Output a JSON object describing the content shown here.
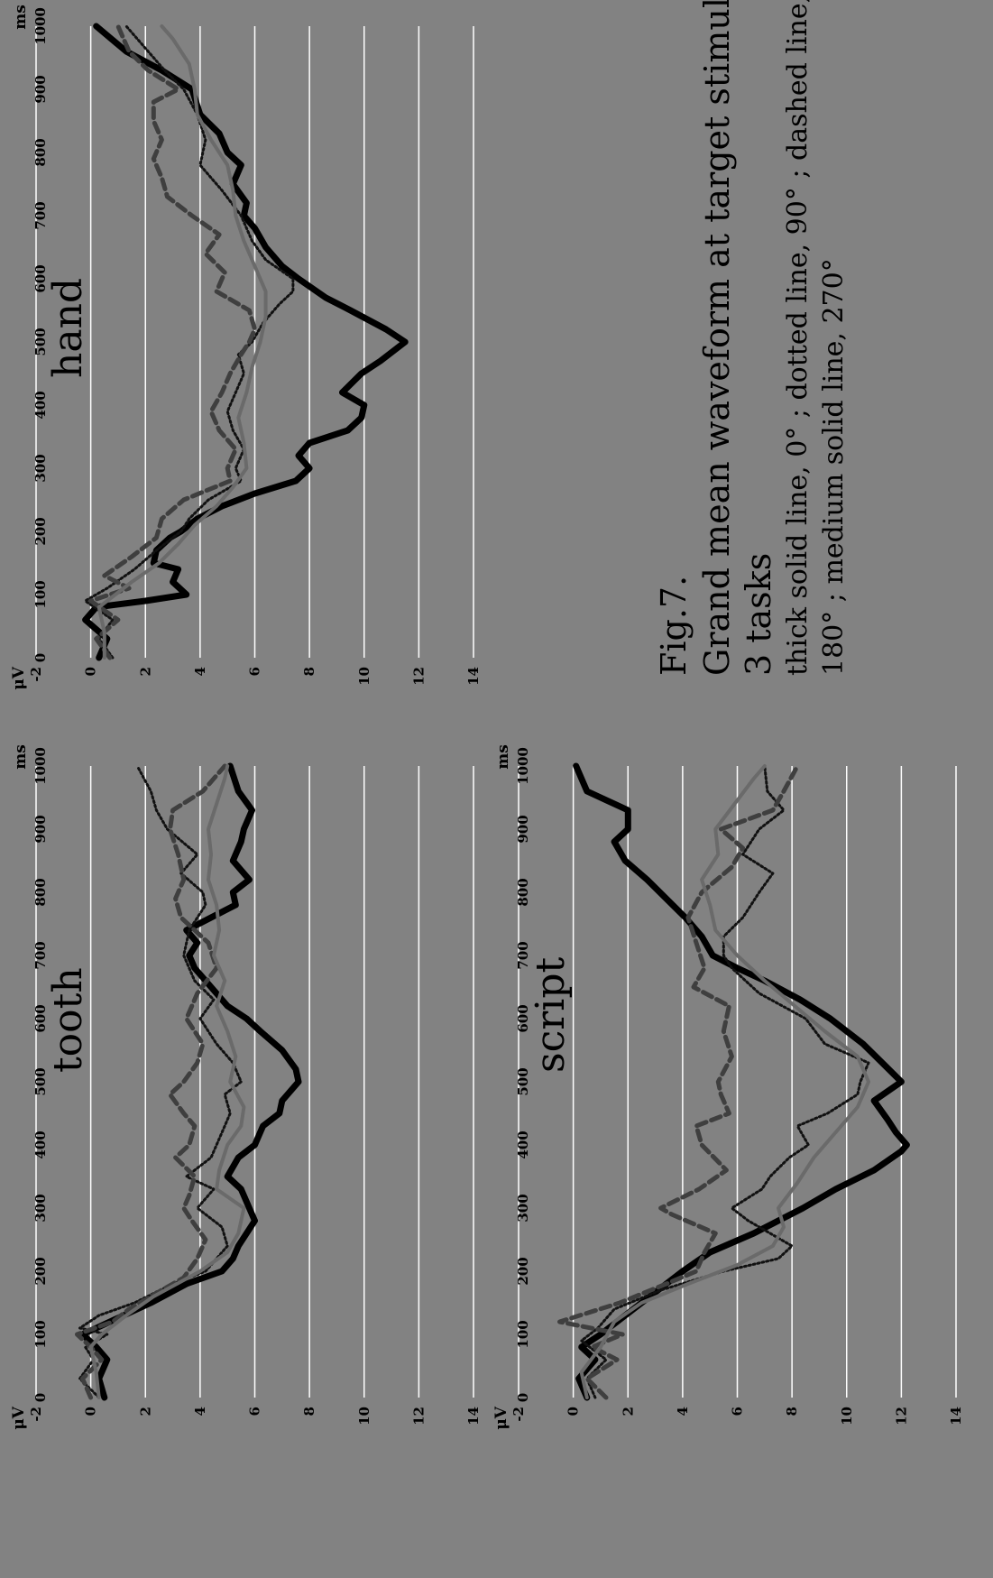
{
  "caption": {
    "fig_label": "Fig.7.",
    "title_line1": "Grand mean waveform at target stimuli in",
    "title_line2": "3 tasks",
    "note_line1": "thick solid line, 0°  ; dotted line, 90°  ; dashed line,",
    "note_line2": "180°  ; medium solid line, 270°"
  },
  "colors": {
    "background": "#828282",
    "gridline": "#ffffff",
    "thick_solid": "#000000",
    "dotted": "#111111",
    "dashed": "#3f3f3f",
    "medium_solid": "#6a6a6a"
  },
  "chart_data": [
    {
      "type": "line",
      "title": "tooth",
      "xlabel": "ms",
      "ylabel": "μV",
      "xlim": [
        0,
        1000
      ],
      "ylim": [
        -2,
        14
      ],
      "y_axis_inverted": true,
      "x_ticks": [
        "0",
        "100",
        "200",
        "300",
        "400",
        "500",
        "600",
        "700",
        "800",
        "900",
        "1000"
      ],
      "y_ticks": [
        "-2",
        "0",
        "2",
        "4",
        "6",
        "8",
        "10",
        "12",
        "14"
      ],
      "grid": true,
      "series": [
        {
          "style": "thick-solid",
          "x": [
            0,
            30,
            60,
            80,
            100,
            110,
            130,
            150,
            180,
            200,
            220,
            240,
            260,
            280,
            300,
            330,
            350,
            380,
            400,
            430,
            450,
            470,
            500,
            520,
            550,
            580,
            600,
            620,
            650,
            680,
            700,
            720,
            740,
            760,
            780,
            800,
            820,
            850,
            880,
            900,
            930,
            960,
            1000
          ],
          "y": [
            0.5,
            0.3,
            0.6,
            0.2,
            -0.3,
            0.2,
            1.2,
            2.2,
            3.5,
            4.8,
            5.2,
            5.4,
            5.7,
            6.0,
            5.8,
            5.5,
            5.0,
            5.4,
            6.0,
            6.3,
            6.9,
            7.0,
            7.6,
            7.5,
            7.0,
            6.2,
            5.7,
            5.0,
            4.4,
            3.8,
            3.6,
            3.9,
            3.5,
            4.4,
            5.3,
            5.2,
            5.8,
            5.2,
            5.5,
            5.6,
            5.9,
            5.4,
            5.1
          ]
        },
        {
          "style": "dotted",
          "x": [
            0,
            30,
            60,
            80,
            100,
            110,
            130,
            150,
            180,
            200,
            220,
            240,
            270,
            300,
            330,
            350,
            380,
            400,
            430,
            450,
            480,
            500,
            530,
            560,
            600,
            630,
            660,
            700,
            740,
            780,
            800,
            830,
            860,
            900,
            930,
            960,
            1000
          ],
          "y": [
            0.3,
            -0.4,
            0.1,
            -0.2,
            0.6,
            -0.4,
            0.3,
            1.6,
            3.0,
            4.2,
            4.6,
            5.0,
            4.8,
            3.9,
            4.5,
            3.5,
            4.4,
            4.6,
            4.9,
            5.1,
            4.9,
            5.5,
            5.2,
            4.6,
            4.0,
            4.5,
            3.8,
            3.4,
            3.6,
            4.2,
            4.1,
            3.3,
            3.9,
            2.8,
            2.4,
            2.2,
            1.7
          ]
        },
        {
          "style": "dashed",
          "x": [
            0,
            30,
            60,
            80,
            100,
            120,
            140,
            160,
            190,
            220,
            250,
            280,
            300,
            320,
            350,
            380,
            400,
            430,
            450,
            480,
            500,
            530,
            560,
            600,
            640,
            680,
            720,
            760,
            790,
            820,
            860,
            900,
            930,
            960,
            1000
          ],
          "y": [
            0,
            -0.3,
            0.4,
            0,
            -0.5,
            0.8,
            1.4,
            2.2,
            3.4,
            3.9,
            4.2,
            3.7,
            3.4,
            3.6,
            3.8,
            3.1,
            3.6,
            3.8,
            3.4,
            2.9,
            3.4,
            3.9,
            4.1,
            3.5,
            3.9,
            4.6,
            4.3,
            3.3,
            3.1,
            3.4,
            3.2,
            2.9,
            3.0,
            4.1,
            4.9
          ]
        },
        {
          "style": "medium-solid",
          "x": [
            0,
            40,
            80,
            100,
            130,
            160,
            200,
            230,
            260,
            300,
            330,
            360,
            400,
            430,
            460,
            500,
            540,
            580,
            620,
            660,
            700,
            740,
            780,
            820,
            860,
            900,
            940,
            980,
            1000
          ],
          "y": [
            0.3,
            0.2,
            0,
            0.4,
            1.3,
            2.3,
            4.0,
            5.0,
            5.4,
            5.6,
            4.6,
            4.7,
            5.0,
            5.5,
            5.6,
            5.1,
            5.3,
            5.0,
            4.6,
            4.9,
            4.5,
            4.7,
            4.6,
            4.3,
            4.4,
            4.3,
            4.6,
            4.9,
            5.0
          ]
        }
      ]
    },
    {
      "type": "line",
      "title": "script",
      "xlabel": "ms",
      "ylabel": "μV",
      "xlim": [
        0,
        1000
      ],
      "ylim": [
        -2,
        14
      ],
      "y_axis_inverted": true,
      "x_ticks": [
        "0",
        "100",
        "200",
        "300",
        "400",
        "500",
        "600",
        "700",
        "800",
        "900",
        "1000"
      ],
      "y_ticks": [
        "-2",
        "0",
        "2",
        "4",
        "6",
        "8",
        "10",
        "12",
        "14"
      ],
      "grid": true,
      "series": [
        {
          "style": "thick-solid",
          "x": [
            0,
            30,
            60,
            80,
            100,
            120,
            150,
            180,
            200,
            230,
            260,
            300,
            330,
            360,
            390,
            400,
            420,
            440,
            470,
            500,
            530,
            560,
            600,
            630,
            660,
            680,
            700,
            730,
            760,
            790,
            820,
            850,
            880,
            900,
            930,
            960,
            1000
          ],
          "y": [
            0.5,
            0.2,
            0.8,
            0.3,
            1.0,
            1.6,
            2.5,
            3.4,
            4.0,
            5.0,
            6.6,
            8.4,
            9.6,
            11.0,
            12.0,
            12.2,
            11.8,
            11.5,
            11.0,
            12.0,
            11.3,
            10.6,
            9.4,
            8.3,
            7.0,
            6.0,
            5.1,
            4.7,
            4.1,
            3.4,
            2.7,
            1.9,
            1.5,
            2.0,
            2.0,
            0.5,
            0.1
          ]
        },
        {
          "style": "dotted",
          "x": [
            0,
            30,
            60,
            90,
            110,
            140,
            170,
            200,
            220,
            240,
            260,
            280,
            300,
            330,
            350,
            380,
            400,
            430,
            450,
            480,
            500,
            530,
            560,
            600,
            640,
            680,
            700,
            730,
            760,
            800,
            830,
            860,
            900,
            930,
            960,
            1000
          ],
          "y": [
            0.8,
            0.5,
            1.2,
            0.3,
            0.9,
            1.5,
            3.2,
            5.5,
            7.5,
            8.0,
            7.2,
            6.4,
            5.8,
            6.9,
            7.2,
            7.9,
            8.6,
            8.2,
            9.3,
            10.4,
            10.5,
            10.8,
            9.2,
            8.5,
            6.8,
            5.8,
            5.5,
            5.5,
            6.2,
            6.8,
            7.3,
            6.2,
            6.8,
            7.7,
            7.1,
            7.0
          ]
        },
        {
          "style": "dashed",
          "x": [
            0,
            30,
            60,
            80,
            100,
            120,
            150,
            180,
            200,
            230,
            260,
            290,
            300,
            330,
            360,
            400,
            430,
            450,
            480,
            500,
            540,
            580,
            620,
            650,
            680,
            720,
            760,
            800,
            840,
            870,
            900,
            930,
            960,
            1000
          ],
          "y": [
            1.2,
            0.5,
            1.6,
            0.7,
            1.8,
            -0.5,
            1.7,
            3.4,
            4.5,
            4.8,
            5.2,
            3.6,
            3.2,
            4.6,
            5.6,
            4.7,
            4.5,
            5.7,
            5.4,
            5.3,
            5.8,
            5.5,
            5.7,
            4.4,
            4.8,
            4.5,
            4.2,
            4.7,
            5.8,
            6.2,
            5.4,
            7.3,
            7.7,
            8.2
          ]
        },
        {
          "style": "medium-solid",
          "x": [
            0,
            40,
            80,
            120,
            150,
            180,
            210,
            240,
            270,
            300,
            340,
            380,
            420,
            460,
            500,
            540,
            580,
            620,
            660,
            700,
            740,
            780,
            820,
            860,
            900,
            940,
            980,
            1000
          ],
          "y": [
            0.5,
            0.3,
            1.0,
            1.5,
            2.5,
            4.2,
            6.0,
            7.3,
            7.7,
            7.5,
            8.2,
            8.8,
            9.6,
            10.4,
            10.8,
            10.4,
            9.2,
            8.1,
            7.0,
            6.0,
            5.2,
            5.0,
            4.7,
            5.3,
            5.2,
            5.9,
            6.6,
            7.0
          ]
        }
      ]
    },
    {
      "type": "line",
      "title": "hand",
      "xlabel": "ms",
      "ylabel": "μV",
      "xlim": [
        0,
        1000
      ],
      "ylim": [
        -2,
        14
      ],
      "y_axis_inverted": true,
      "x_ticks": [
        "0",
        "100",
        "200",
        "300",
        "400",
        "500",
        "600",
        "700",
        "800",
        "900",
        "1000"
      ],
      "y_ticks": [
        "-2",
        "0",
        "2",
        "4",
        "6",
        "8",
        "10",
        "12",
        "14"
      ],
      "grid": true,
      "series": [
        {
          "style": "thick-solid",
          "x": [
            0,
            30,
            60,
            80,
            90,
            100,
            120,
            140,
            150,
            170,
            190,
            200,
            220,
            240,
            260,
            280,
            300,
            320,
            340,
            360,
            380,
            400,
            420,
            450,
            470,
            500,
            520,
            550,
            570,
            600,
            620,
            650,
            680,
            700,
            720,
            750,
            780,
            800,
            830,
            860,
            900,
            930,
            960,
            1000
          ],
          "y": [
            0.3,
            0.6,
            -0.2,
            0.2,
            2.0,
            3.5,
            3.0,
            3.2,
            2.3,
            2.4,
            2.9,
            3.3,
            3.9,
            4.8,
            6.0,
            7.5,
            8.0,
            7.6,
            8.0,
            9.4,
            9.9,
            10.0,
            9.2,
            9.9,
            10.6,
            11.5,
            10.8,
            9.5,
            8.6,
            7.6,
            7.0,
            6.4,
            6.0,
            5.6,
            5.7,
            5.2,
            5.5,
            5.0,
            4.7,
            4.0,
            3.7,
            2.6,
            1.3,
            0.2
          ]
        },
        {
          "style": "dotted",
          "x": [
            0,
            30,
            60,
            90,
            110,
            140,
            170,
            200,
            220,
            250,
            280,
            300,
            330,
            360,
            390,
            420,
            450,
            480,
            500,
            530,
            560,
            580,
            600,
            630,
            660,
            700,
            740,
            780,
            820,
            860,
            900,
            930,
            960,
            1000
          ],
          "y": [
            0.8,
            0.3,
            0.8,
            -0.2,
            0.6,
            1.6,
            2.4,
            3.3,
            3.6,
            4.3,
            5.5,
            5.3,
            5.6,
            5.2,
            5.0,
            5.3,
            5.6,
            5.4,
            5.9,
            6.3,
            6.9,
            7.4,
            7.4,
            6.4,
            5.9,
            5.5,
            4.8,
            4.0,
            4.2,
            3.9,
            3.4,
            2.7,
            2.1,
            1.3
          ]
        },
        {
          "style": "dashed",
          "x": [
            0,
            30,
            60,
            90,
            110,
            130,
            160,
            190,
            220,
            250,
            280,
            300,
            330,
            360,
            390,
            420,
            450,
            480,
            500,
            520,
            550,
            580,
            610,
            640,
            670,
            700,
            730,
            760,
            790,
            820,
            850,
            880,
            900,
            930,
            960,
            1000
          ],
          "y": [
            0.7,
            0.2,
            1.0,
            0,
            1.4,
            0.5,
            1.5,
            2.4,
            2.6,
            3.4,
            5.1,
            5.0,
            5.3,
            4.7,
            4.4,
            4.8,
            5.1,
            5.5,
            5.8,
            6.0,
            5.8,
            4.6,
            4.9,
            4.2,
            4.7,
            3.7,
            2.8,
            2.6,
            2.3,
            2.6,
            2.3,
            2.3,
            3.2,
            2.1,
            1.4,
            1.0
          ]
        },
        {
          "style": "medium-solid",
          "x": [
            0,
            40,
            80,
            120,
            150,
            180,
            210,
            240,
            270,
            300,
            340,
            380,
            420,
            460,
            500,
            540,
            580,
            620,
            660,
            700,
            740,
            780,
            820,
            860,
            900,
            940,
            980,
            1000
          ],
          "y": [
            0.5,
            0.5,
            0.3,
            1.5,
            2.5,
            3.2,
            3.8,
            4.6,
            5.2,
            5.7,
            5.6,
            5.4,
            5.7,
            5.9,
            6.2,
            6.4,
            6.4,
            6.0,
            5.6,
            5.3,
            5.2,
            5.0,
            4.4,
            3.9,
            3.8,
            3.6,
            3.0,
            2.6
          ]
        }
      ]
    }
  ]
}
